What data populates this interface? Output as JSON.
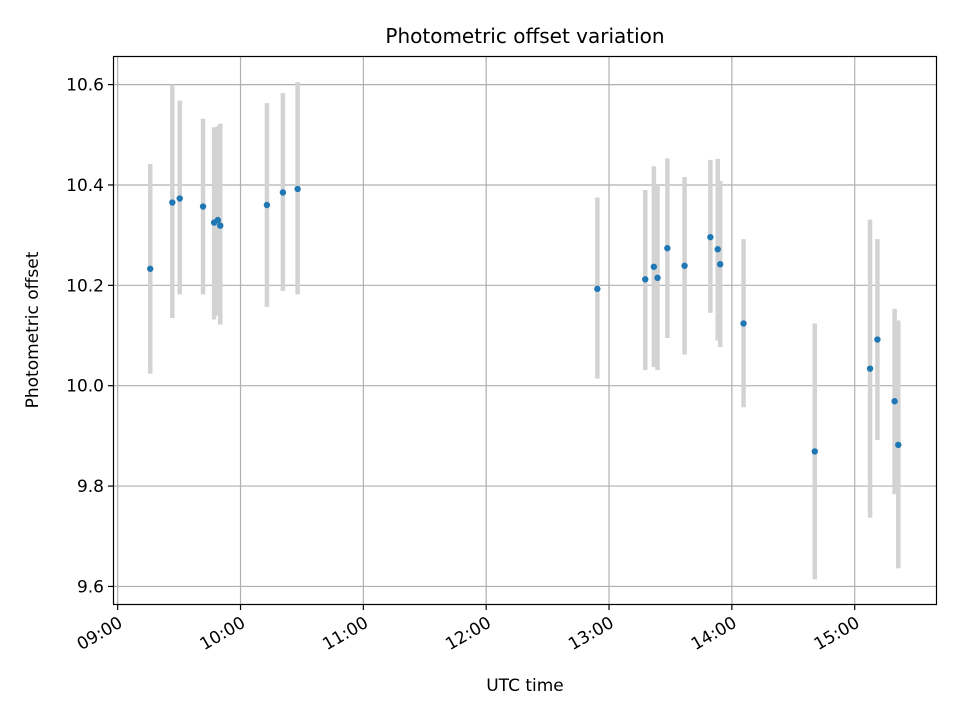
{
  "chart_data": {
    "type": "scatter",
    "title": "Photometric offset variation",
    "xlabel": "UTC time",
    "ylabel": "Photometric offset",
    "x_unit": "hours UTC",
    "xlim": [
      8.97,
      15.67
    ],
    "ylim": [
      9.565,
      10.655
    ],
    "x_ticks": [
      9,
      10,
      11,
      12,
      13,
      14,
      15
    ],
    "x_tick_labels": [
      "09:00",
      "10:00",
      "11:00",
      "12:00",
      "13:00",
      "14:00",
      "15:00"
    ],
    "y_ticks": [
      9.6,
      9.8,
      10.0,
      10.2,
      10.4,
      10.6
    ],
    "y_tick_labels": [
      "9.6",
      "9.8",
      "10.0",
      "10.2",
      "10.4",
      "10.6"
    ],
    "grid": true,
    "marker_color": "#1f77b4",
    "errorbar_color": "#d3d3d3",
    "points": [
      {
        "x": 9.265,
        "y": 10.233,
        "lo": 10.024,
        "hi": 10.442
      },
      {
        "x": 9.445,
        "y": 10.365,
        "lo": 10.135,
        "hi": 10.6
      },
      {
        "x": 9.505,
        "y": 10.373,
        "lo": 10.182,
        "hi": 10.568
      },
      {
        "x": 9.695,
        "y": 10.357,
        "lo": 10.182,
        "hi": 10.532
      },
      {
        "x": 9.785,
        "y": 10.325,
        "lo": 10.132,
        "hi": 10.515
      },
      {
        "x": 9.815,
        "y": 10.33,
        "lo": 10.14,
        "hi": 10.517
      },
      {
        "x": 9.835,
        "y": 10.319,
        "lo": 10.122,
        "hi": 10.522
      },
      {
        "x": 10.215,
        "y": 10.36,
        "lo": 10.157,
        "hi": 10.563
      },
      {
        "x": 10.345,
        "y": 10.385,
        "lo": 10.189,
        "hi": 10.583
      },
      {
        "x": 10.465,
        "y": 10.392,
        "lo": 10.182,
        "hi": 10.605
      },
      {
        "x": 12.905,
        "y": 10.193,
        "lo": 10.014,
        "hi": 10.375
      },
      {
        "x": 13.295,
        "y": 10.212,
        "lo": 10.031,
        "hi": 10.39
      },
      {
        "x": 13.365,
        "y": 10.237,
        "lo": 10.037,
        "hi": 10.437
      },
      {
        "x": 13.395,
        "y": 10.215,
        "lo": 10.031,
        "hi": 10.4
      },
      {
        "x": 13.475,
        "y": 10.274,
        "lo": 10.095,
        "hi": 10.453
      },
      {
        "x": 13.615,
        "y": 10.239,
        "lo": 10.062,
        "hi": 10.416
      },
      {
        "x": 13.825,
        "y": 10.296,
        "lo": 10.145,
        "hi": 10.45
      },
      {
        "x": 13.885,
        "y": 10.272,
        "lo": 10.09,
        "hi": 10.452
      },
      {
        "x": 13.905,
        "y": 10.242,
        "lo": 10.077,
        "hi": 10.408
      },
      {
        "x": 14.095,
        "y": 10.124,
        "lo": 9.957,
        "hi": 10.292
      },
      {
        "x": 14.675,
        "y": 9.869,
        "lo": 9.614,
        "hi": 10.124
      },
      {
        "x": 15.125,
        "y": 10.034,
        "lo": 9.737,
        "hi": 10.331
      },
      {
        "x": 15.185,
        "y": 10.092,
        "lo": 9.892,
        "hi": 10.292
      },
      {
        "x": 15.325,
        "y": 9.969,
        "lo": 9.784,
        "hi": 10.153
      },
      {
        "x": 15.355,
        "y": 9.882,
        "lo": 9.636,
        "hi": 10.13
      }
    ]
  }
}
